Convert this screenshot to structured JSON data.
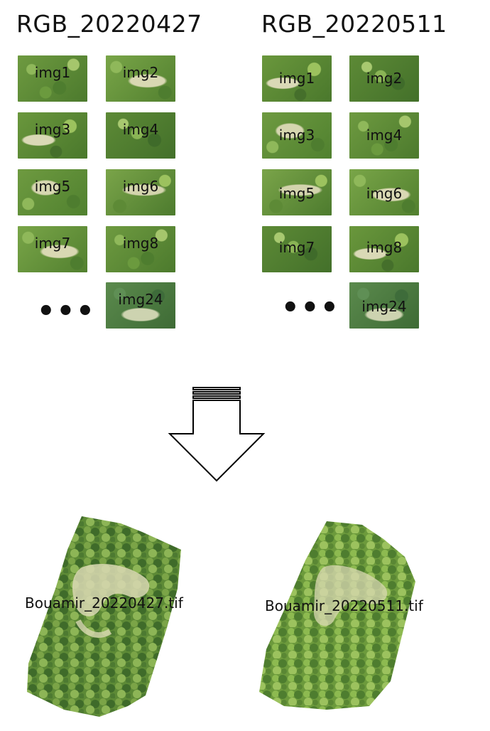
{
  "groups": [
    {
      "title": "RGB_20220427",
      "tiles": [
        "img1",
        "img2",
        "img3",
        "img4",
        "img5",
        "img6",
        "img7",
        "img8"
      ],
      "last_tile": "img24",
      "ellipsis": "•••",
      "output": "Bouamir_20220427.tif"
    },
    {
      "title": "RGB_20220511",
      "tiles": [
        "img1",
        "img2",
        "img3",
        "img4",
        "img5",
        "img6",
        "img7",
        "img8"
      ],
      "last_tile": "img24",
      "ellipsis": "•••",
      "output": "Bouamir_20220511.tif"
    }
  ],
  "colors": {
    "canopy_dark": "#3f6b2a",
    "canopy_mid": "#6f9a3e",
    "canopy_light": "#a9c46a",
    "clearing": "#d9d8b3",
    "arrow_stroke": "#000000"
  }
}
